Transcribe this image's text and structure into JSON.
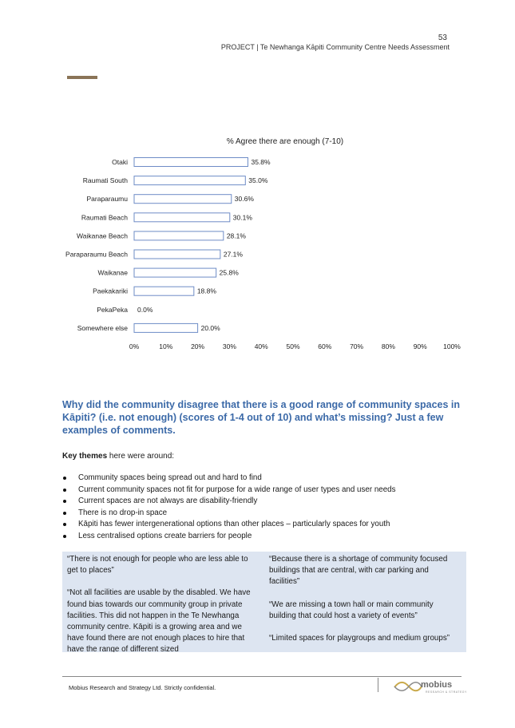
{
  "header": {
    "page_number": "53",
    "title": "PROJECT | Te Newhanga Kāpiti Community Centre Needs Assessment"
  },
  "chart_data": {
    "type": "bar",
    "orientation": "horizontal",
    "title": "% Agree there are enough (7-10)",
    "categories": [
      "Otaki",
      "Raumati South",
      "Paraparaumu",
      "Raumati Beach",
      "Waikanae Beach",
      "Paraparaumu Beach",
      "Waikanae",
      "Paekakariki",
      "PekaPeka",
      "Somewhere else"
    ],
    "values": [
      35.8,
      35.0,
      30.6,
      30.1,
      28.1,
      27.1,
      25.8,
      18.8,
      0.0,
      20.0
    ],
    "value_labels": [
      "35.8%",
      "35.0%",
      "30.6%",
      "30.1%",
      "28.1%",
      "27.1%",
      "25.8%",
      "18.8%",
      "0.0%",
      "20.0%"
    ],
    "xlim": [
      0,
      100
    ],
    "x_ticks": [
      "0%",
      "10%",
      "20%",
      "30%",
      "40%",
      "50%",
      "60%",
      "70%",
      "80%",
      "90%",
      "100%"
    ],
    "bar_color": "#6e8cc6",
    "grid": false
  },
  "question": "Why did the community disagree that there is a good range of community spaces in Kāpiti? (i.e. not enough) (scores of 1-4 out of 10) and what’s missing?  Just a few examples of comments.",
  "intro": {
    "bold": "Key themes",
    "rest": " here were around:"
  },
  "themes": [
    "Community spaces being spread out and hard to find",
    "Current community spaces not fit for purpose for a wide range of user types and user needs",
    "Current spaces are not always are disability-friendly",
    "There is no drop-in space",
    "Kāpiti has fewer intergenerational options than other places – particularly spaces for youth",
    "Less centralised options create barriers for people"
  ],
  "quotes": {
    "left": [
      "“There is not enough for people who are less able to get to places”",
      "“Not all facilities are usable by the disabled. We have found bias towards our community group in private facilities. This did not happen in the Te Newhanga community centre. Kāpiti is a growing area and we have found there are not enough places to hire that have the range of different sized"
    ],
    "right": [
      "“Because there is a shortage of community focused buildings that are central, with car parking and facilities”",
      "“We are missing a town hall or main community building that could host a variety of events”",
      "“Limited spaces for playgroups  and medium groups”"
    ]
  },
  "footer": {
    "text": "Mobius Research and Strategy Ltd.  Strictly confidential.",
    "logo": "mobius",
    "logo_sub": "RESEARCH & STRATEGY"
  },
  "colors": {
    "accent_bar": "#8a7457",
    "heading": "#3c6aa8",
    "quote_bg": "#dde5f1"
  }
}
